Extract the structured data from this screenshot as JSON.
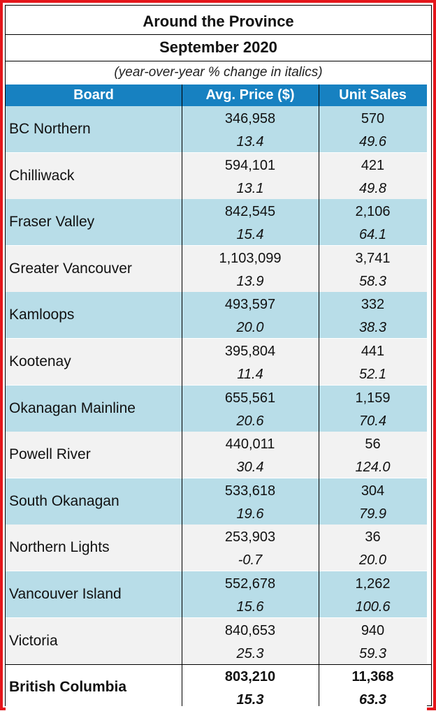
{
  "chart_data": {
    "type": "table",
    "title": "Around the Province",
    "subtitle": "September 2020",
    "note": "(year-over-year % change in italics)",
    "columns": [
      "Board",
      "Avg. Price ($)",
      "Unit Sales"
    ],
    "rows": [
      {
        "board": "BC Northern",
        "avg_price": "346,958",
        "avg_price_change": "13.4",
        "unit_sales": "570",
        "unit_sales_change": "49.6"
      },
      {
        "board": "Chilliwack",
        "avg_price": "594,101",
        "avg_price_change": "13.1",
        "unit_sales": "421",
        "unit_sales_change": "49.8"
      },
      {
        "board": "Fraser Valley",
        "avg_price": "842,545",
        "avg_price_change": "15.4",
        "unit_sales": "2,106",
        "unit_sales_change": "64.1"
      },
      {
        "board": "Greater Vancouver",
        "avg_price": "1,103,099",
        "avg_price_change": "13.9",
        "unit_sales": "3,741",
        "unit_sales_change": "58.3"
      },
      {
        "board": "Kamloops",
        "avg_price": "493,597",
        "avg_price_change": "20.0",
        "unit_sales": "332",
        "unit_sales_change": "38.3"
      },
      {
        "board": "Kootenay",
        "avg_price": "395,804",
        "avg_price_change": "11.4",
        "unit_sales": "441",
        "unit_sales_change": "52.1"
      },
      {
        "board": "Okanagan Mainline",
        "avg_price": "655,561",
        "avg_price_change": "20.6",
        "unit_sales": "1,159",
        "unit_sales_change": "70.4"
      },
      {
        "board": "Powell River",
        "avg_price": "440,011",
        "avg_price_change": "30.4",
        "unit_sales": "56",
        "unit_sales_change": "124.0"
      },
      {
        "board": "South Okanagan",
        "avg_price": "533,618",
        "avg_price_change": "19.6",
        "unit_sales": "304",
        "unit_sales_change": "79.9"
      },
      {
        "board": "Northern Lights",
        "avg_price": "253,903",
        "avg_price_change": "-0.7",
        "unit_sales": "36",
        "unit_sales_change": "20.0"
      },
      {
        "board": "Vancouver Island",
        "avg_price": "552,678",
        "avg_price_change": "15.6",
        "unit_sales": "1,262",
        "unit_sales_change": "100.6"
      },
      {
        "board": "Victoria",
        "avg_price": "840,653",
        "avg_price_change": "25.3",
        "unit_sales": "940",
        "unit_sales_change": "59.3"
      }
    ],
    "total": {
      "board": "British Columbia",
      "avg_price": "803,210",
      "avg_price_change": "15.3",
      "unit_sales": "11,368",
      "unit_sales_change": "63.3"
    }
  },
  "colors": {
    "frame": "#e4161b",
    "header": "#1781c1",
    "row_blue": "#b8dde8",
    "row_grey": "#f2f2f2"
  }
}
